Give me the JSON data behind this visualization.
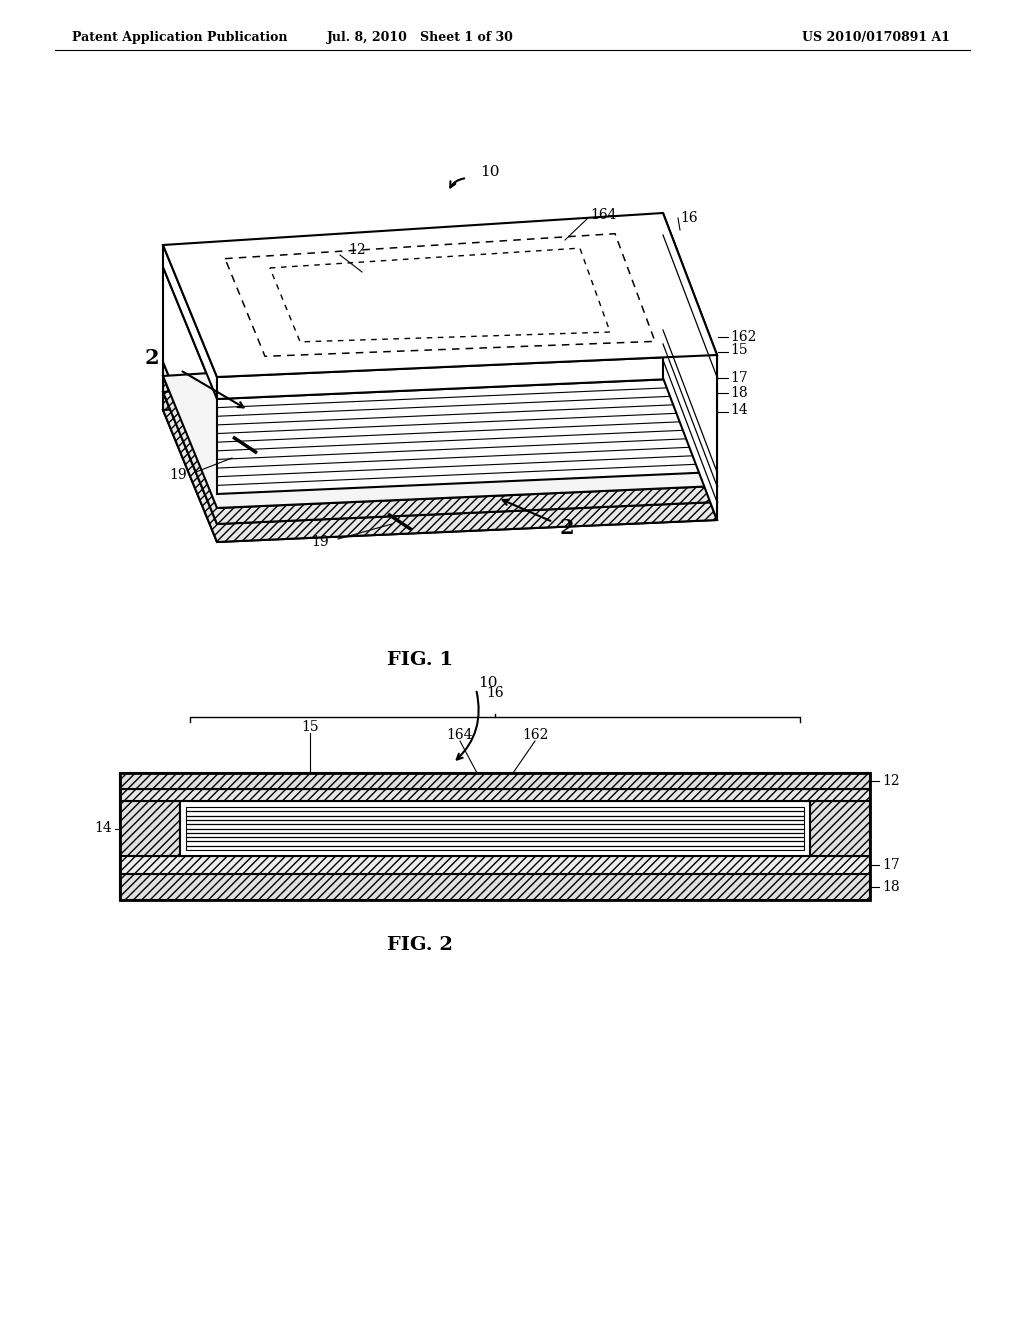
{
  "header_left": "Patent Application Publication",
  "header_mid": "Jul. 8, 2010   Sheet 1 of 30",
  "header_right": "US 2010/0170891 A1",
  "fig1_title": "FIG. 1",
  "fig2_title": "FIG. 2",
  "bg_color": "#ffffff",
  "line_color": "#000000"
}
